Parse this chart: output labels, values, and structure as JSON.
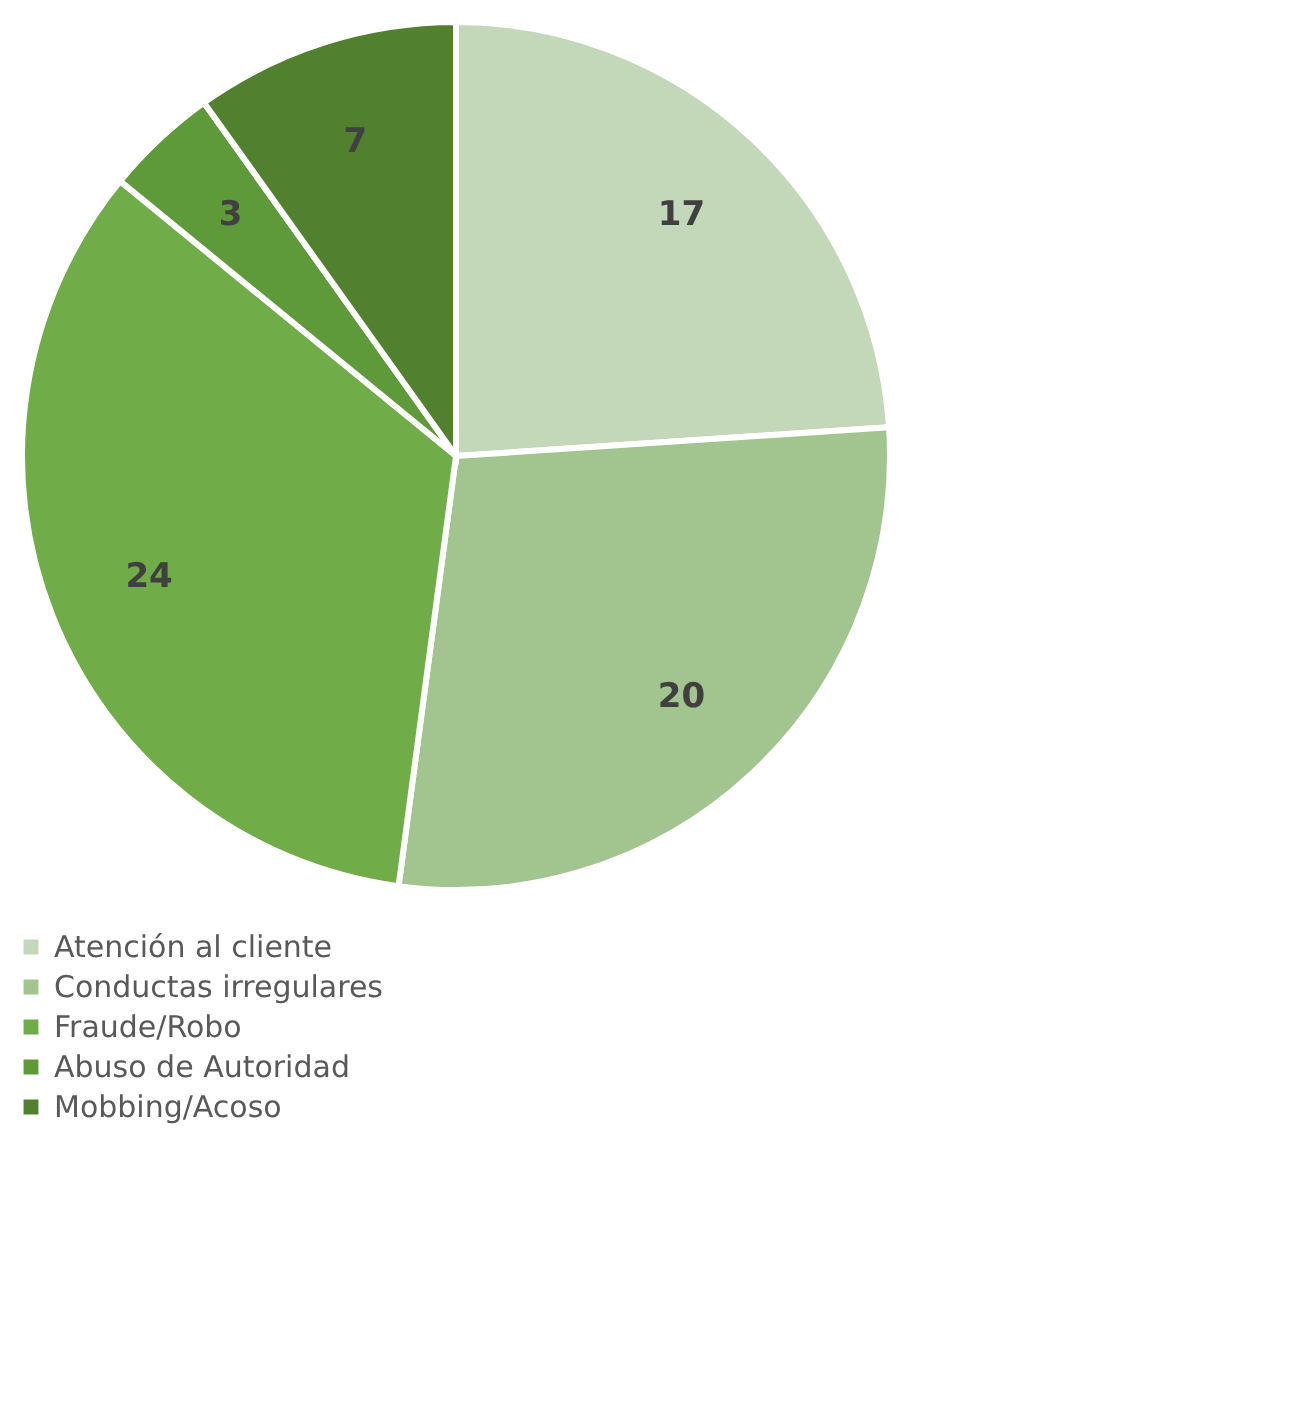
{
  "chart_data": {
    "type": "pie",
    "categories": [
      "Atención al cliente",
      "Conductas irregulares",
      "Fraude/Robo",
      "Abuso de Autoridad",
      "Mobbing/Acoso"
    ],
    "values": [
      17,
      20,
      24,
      3,
      7
    ],
    "colors": [
      "#c3d8b9",
      "#a2c58f",
      "#70ac47",
      "#5e993a",
      "#51812f"
    ],
    "data_labels": true,
    "legend": "bottom"
  }
}
